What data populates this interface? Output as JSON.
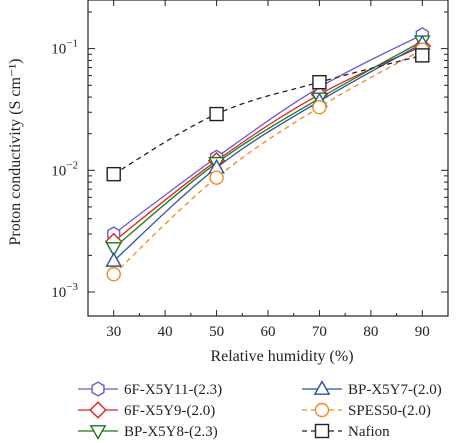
{
  "chart_data": {
    "type": "line",
    "xlabel": "Relative humidity (%)",
    "ylabel": "Proton conductivity (S cm⁻¹)",
    "xlim": [
      25,
      95
    ],
    "ylim": [
      0.001,
      0.2
    ],
    "yscale": "log",
    "grid": false,
    "legend_position": "bottom",
    "x_ticks": [
      30,
      40,
      50,
      60,
      70,
      80,
      90
    ],
    "x_tick_labels": [
      "30",
      "40",
      "50",
      "60",
      "70",
      "80",
      "90"
    ],
    "y_ticks": [
      0.001,
      0.01,
      0.1
    ],
    "y_tick_labels": [
      {
        "base": "10",
        "exp": "−3"
      },
      {
        "base": "10",
        "exp": "−2"
      },
      {
        "base": "10",
        "exp": "−1"
      }
    ],
    "series": [
      {
        "name": "6F-X5Y11-(2.3)",
        "marker": "hexagon",
        "color": "#6a5acd",
        "dash": "solid",
        "points": [
          [
            30,
            0.003
          ],
          [
            50,
            0.0128
          ],
          [
            70,
            0.048
          ],
          [
            90,
            0.13
          ]
        ]
      },
      {
        "name": "6F-X5Y9-(2.0)",
        "marker": "diamond",
        "color": "#e02020",
        "dash": "solid",
        "points": [
          [
            30,
            0.0026
          ],
          [
            50,
            0.012
          ],
          [
            70,
            0.042
          ],
          [
            90,
            0.105
          ]
        ]
      },
      {
        "name": "BP-X5Y8-(2.3)",
        "marker": "triangle-down",
        "color": "#1a7a1a",
        "dash": "solid",
        "points": [
          [
            30,
            0.0023
          ],
          [
            50,
            0.0115
          ],
          [
            70,
            0.039
          ],
          [
            90,
            0.115
          ]
        ]
      },
      {
        "name": "BP-X5Y7-(2.0)",
        "marker": "triangle-up",
        "color": "#2e4fa0",
        "dash": "solid",
        "points": [
          [
            30,
            0.0018
          ],
          [
            50,
            0.0105
          ],
          [
            70,
            0.037
          ],
          [
            90,
            0.11
          ]
        ]
      },
      {
        "name": "SPES50-(2.0)",
        "marker": "circle",
        "color": "#f08a1c",
        "dash": "dashed",
        "points": [
          [
            30,
            0.0014
          ],
          [
            50,
            0.0087
          ],
          [
            70,
            0.033
          ],
          [
            90,
            0.098
          ]
        ]
      },
      {
        "name": "Nafion",
        "marker": "square",
        "color": "#222222",
        "dash": "dashed",
        "points": [
          [
            30,
            0.0093
          ],
          [
            50,
            0.029
          ],
          [
            70,
            0.053
          ],
          [
            90,
            0.088
          ]
        ]
      }
    ]
  }
}
